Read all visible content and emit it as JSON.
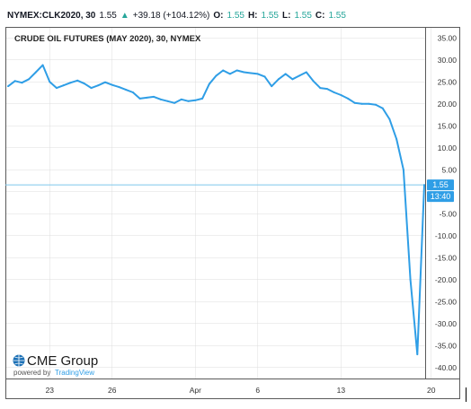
{
  "header": {
    "symbol": "NYMEX:CLK2020, 30",
    "last": "1.55",
    "change": "+39.18 (+104.12%)",
    "open_label": "O:",
    "open": "1.55",
    "high_label": "H:",
    "high": "1.55",
    "low_label": "L:",
    "low": "1.55",
    "close_label": "C:",
    "close": "1.55",
    "up_icon": "triangle-up-icon"
  },
  "chart_title": "CRUDE OIL FUTURES (MAY 2020), 30, NYMEX",
  "branding": {
    "logo_text": "CME Group",
    "logo_icon": "globe-icon",
    "powered_by": "powered by",
    "tradingview": "TradingView"
  },
  "price_badge": "1.55",
  "time_badge": "13:40",
  "colors": {
    "line": "#2f9ee6",
    "badge": "#2f9ee6",
    "current_price_line": "#7cc8ec",
    "up": "#26a69a",
    "grid": "#dcdcdc"
  },
  "chart_data": {
    "type": "line",
    "title": "CRUDE OIL FUTURES (MAY 2020), 30, NYMEX",
    "xlabel": "",
    "ylabel": "",
    "ylim": [
      -42.5,
      37.5
    ],
    "y_ticks": [
      "35.00",
      "30.00",
      "25.00",
      "20.00",
      "15.00",
      "10.00",
      "5.00",
      "",
      "-5.00",
      "-10.00",
      "-15.00",
      "-20.00",
      "-25.00",
      "-30.00",
      "-35.00",
      "-40.00"
    ],
    "y_tick_values": [
      35,
      30,
      25,
      20,
      15,
      10,
      5,
      0,
      -5,
      -10,
      -15,
      -20,
      -25,
      -30,
      -35,
      -40
    ],
    "x_ticks": [
      "23",
      "26",
      "Apr",
      "6",
      "13",
      "20"
    ],
    "x_tick_index": [
      6,
      15,
      27,
      36,
      48,
      61
    ],
    "current_price": 1.55,
    "series": [
      {
        "values": [
          24,
          25.2,
          24.8,
          25.6,
          27.2,
          28.8,
          25.0,
          23.6,
          24.2,
          24.8,
          25.3,
          24.6,
          23.6,
          24.2,
          24.9,
          24.3,
          23.8,
          23.2,
          22.6,
          21.2,
          21.4,
          21.6,
          21.0,
          20.6,
          20.2,
          21.0,
          20.6,
          20.8,
          21.2,
          24.5,
          26.4,
          27.6,
          26.8,
          27.6,
          27.2,
          27.0,
          26.8,
          26.2,
          24.0,
          25.6,
          26.8,
          25.6,
          26.4,
          27.2,
          25.2,
          23.6,
          23.4,
          22.6,
          22.0,
          21.2,
          20.2,
          20.0,
          20.0,
          19.8,
          19.0,
          16.5,
          12.0,
          5.0,
          -20.0,
          -37.0,
          1.55
        ]
      }
    ]
  }
}
